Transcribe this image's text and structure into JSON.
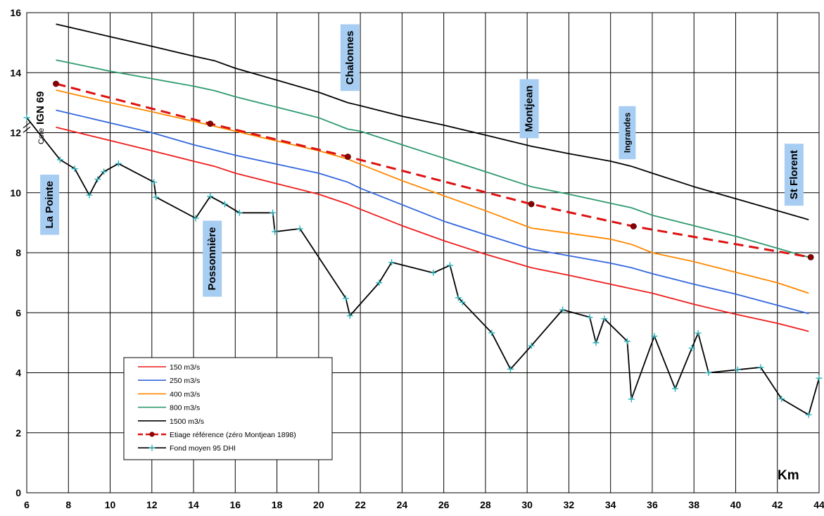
{
  "chart_data": {
    "type": "line",
    "xlabel": "Km",
    "ylabel_prefix": "Cote",
    "ylabel_bold": "IGN 69",
    "xlim": [
      6,
      44
    ],
    "ylim": [
      0,
      16
    ],
    "x_ticks": [
      6,
      8,
      10,
      12,
      14,
      16,
      18,
      20,
      22,
      24,
      26,
      28,
      30,
      32,
      34,
      36,
      38,
      40,
      42,
      44
    ],
    "y_ticks": [
      0,
      2,
      4,
      6,
      8,
      10,
      12,
      14,
      16
    ],
    "grid": true,
    "legend_position": "bottom-left",
    "series": [
      {
        "name": "150 m3/s",
        "color": "#ee1c1c",
        "style": "solid",
        "points": [
          [
            7.4,
            12.18
          ],
          [
            12,
            11.4
          ],
          [
            14,
            11.05
          ],
          [
            15,
            10.88
          ],
          [
            16,
            10.65
          ],
          [
            18,
            10.3
          ],
          [
            20,
            9.95
          ],
          [
            21.4,
            9.62
          ],
          [
            22,
            9.45
          ],
          [
            24,
            8.9
          ],
          [
            26,
            8.4
          ],
          [
            28,
            7.95
          ],
          [
            30.2,
            7.5
          ],
          [
            32,
            7.25
          ],
          [
            34,
            6.95
          ],
          [
            36,
            6.65
          ],
          [
            38,
            6.28
          ],
          [
            40,
            5.95
          ],
          [
            42,
            5.65
          ],
          [
            43.5,
            5.38
          ]
        ]
      },
      {
        "name": "250 m3/s",
        "color": "#3366dd",
        "style": "solid",
        "points": [
          [
            7.4,
            12.75
          ],
          [
            12,
            12.0
          ],
          [
            14,
            11.6
          ],
          [
            16,
            11.25
          ],
          [
            18,
            10.95
          ],
          [
            20,
            10.65
          ],
          [
            21.4,
            10.35
          ],
          [
            22,
            10.15
          ],
          [
            24,
            9.6
          ],
          [
            26,
            9.05
          ],
          [
            28,
            8.6
          ],
          [
            30.2,
            8.12
          ],
          [
            32,
            7.9
          ],
          [
            34,
            7.65
          ],
          [
            35,
            7.5
          ],
          [
            36,
            7.3
          ],
          [
            38,
            6.95
          ],
          [
            40,
            6.62
          ],
          [
            42,
            6.25
          ],
          [
            43.5,
            5.97
          ]
        ]
      },
      {
        "name": "400 m3/s",
        "color": "#ff8800",
        "style": "solid",
        "points": [
          [
            7.4,
            13.42
          ],
          [
            10,
            13.0
          ],
          [
            12,
            12.7
          ],
          [
            14,
            12.38
          ],
          [
            16,
            12.05
          ],
          [
            18,
            11.72
          ],
          [
            20,
            11.4
          ],
          [
            21.4,
            11.12
          ],
          [
            22,
            10.95
          ],
          [
            24,
            10.4
          ],
          [
            26,
            9.9
          ],
          [
            28,
            9.4
          ],
          [
            30.2,
            8.82
          ],
          [
            32,
            8.65
          ],
          [
            34,
            8.45
          ],
          [
            35,
            8.28
          ],
          [
            36,
            8.0
          ],
          [
            38,
            7.7
          ],
          [
            40,
            7.35
          ],
          [
            42,
            7.0
          ],
          [
            43.5,
            6.65
          ]
        ]
      },
      {
        "name": "800 m3/s",
        "color": "#2e9a6e",
        "style": "solid",
        "points": [
          [
            7.4,
            14.42
          ],
          [
            10,
            14.05
          ],
          [
            12,
            13.8
          ],
          [
            14,
            13.55
          ],
          [
            15,
            13.4
          ],
          [
            16,
            13.2
          ],
          [
            18,
            12.85
          ],
          [
            20,
            12.5
          ],
          [
            21.4,
            12.12
          ],
          [
            22,
            12.05
          ],
          [
            24,
            11.6
          ],
          [
            26,
            11.15
          ],
          [
            28,
            10.7
          ],
          [
            30.2,
            10.2
          ],
          [
            32,
            9.95
          ],
          [
            34,
            9.65
          ],
          [
            35,
            9.5
          ],
          [
            36,
            9.25
          ],
          [
            38,
            8.9
          ],
          [
            40,
            8.55
          ],
          [
            42,
            8.15
          ],
          [
            43.5,
            7.85
          ]
        ]
      },
      {
        "name": "1500 m3/s",
        "color": "#000000",
        "style": "solid",
        "points": [
          [
            7.4,
            15.62
          ],
          [
            10,
            15.2
          ],
          [
            12,
            14.88
          ],
          [
            14,
            14.55
          ],
          [
            15,
            14.4
          ],
          [
            16,
            14.15
          ],
          [
            18,
            13.75
          ],
          [
            20,
            13.35
          ],
          [
            21.4,
            13.0
          ],
          [
            22,
            12.9
          ],
          [
            24,
            12.55
          ],
          [
            26,
            12.25
          ],
          [
            28,
            11.92
          ],
          [
            30.2,
            11.55
          ],
          [
            32,
            11.3
          ],
          [
            34,
            11.05
          ],
          [
            35,
            10.88
          ],
          [
            36,
            10.65
          ],
          [
            38,
            10.2
          ],
          [
            40,
            9.8
          ],
          [
            42,
            9.4
          ],
          [
            43.5,
            9.1
          ]
        ]
      },
      {
        "name": "Etiage référence (zéro Montjean 1898)",
        "color": "#dd1111",
        "style": "dashed",
        "marker": "dot",
        "points": [
          [
            7.4,
            13.63
          ],
          [
            14.8,
            12.3
          ],
          [
            21.4,
            11.2
          ],
          [
            30.2,
            9.62
          ],
          [
            35.1,
            8.88
          ],
          [
            43.6,
            7.85
          ]
        ]
      },
      {
        "name": "Fond moyen 95 DHI",
        "color": "#000000",
        "style": "solid",
        "marker": "cross",
        "points": [
          [
            6.0,
            12.5
          ],
          [
            7.6,
            11.1
          ],
          [
            8.3,
            10.8
          ],
          [
            9.0,
            9.92
          ],
          [
            9.4,
            10.45
          ],
          [
            9.7,
            10.7
          ],
          [
            10.4,
            10.97
          ],
          [
            12.1,
            10.35
          ],
          [
            12.2,
            9.85
          ],
          [
            14.1,
            9.15
          ],
          [
            14.8,
            9.88
          ],
          [
            15.5,
            9.62
          ],
          [
            16.2,
            9.33
          ],
          [
            17.8,
            9.33
          ],
          [
            17.9,
            8.7
          ],
          [
            19.1,
            8.8
          ],
          [
            21.3,
            6.48
          ],
          [
            21.5,
            5.9
          ],
          [
            22.9,
            7.0
          ],
          [
            23.5,
            7.68
          ],
          [
            25.5,
            7.33
          ],
          [
            26.3,
            7.58
          ],
          [
            26.7,
            6.5
          ],
          [
            26.9,
            6.35
          ],
          [
            28.3,
            5.33
          ],
          [
            29.2,
            4.12
          ],
          [
            30.2,
            4.9
          ],
          [
            31.7,
            6.1
          ],
          [
            33.0,
            5.85
          ],
          [
            33.3,
            5.0
          ],
          [
            33.7,
            5.8
          ],
          [
            34.8,
            5.05
          ],
          [
            35.0,
            3.12
          ],
          [
            36.1,
            5.22
          ],
          [
            37.1,
            3.47
          ],
          [
            37.9,
            4.82
          ],
          [
            38.2,
            5.32
          ],
          [
            38.7,
            4.0
          ],
          [
            40.1,
            4.1
          ],
          [
            41.2,
            4.18
          ],
          [
            42.2,
            3.13
          ],
          [
            43.5,
            2.6
          ],
          [
            44.0,
            3.82
          ]
        ]
      }
    ],
    "annotations": [
      {
        "text": "La Pointe",
        "x": 7.1,
        "y": 9.6
      },
      {
        "text": "Possonnière",
        "x": 14.9,
        "y": 7.8
      },
      {
        "text": "Chalonnes",
        "x": 21.5,
        "y": 14.5
      },
      {
        "text": "Montjean",
        "x": 30.1,
        "y": 12.8
      },
      {
        "text": "Ingrandes",
        "x": 34.8,
        "y": 12.0
      },
      {
        "text": "St Florent",
        "x": 42.8,
        "y": 10.6
      }
    ]
  }
}
